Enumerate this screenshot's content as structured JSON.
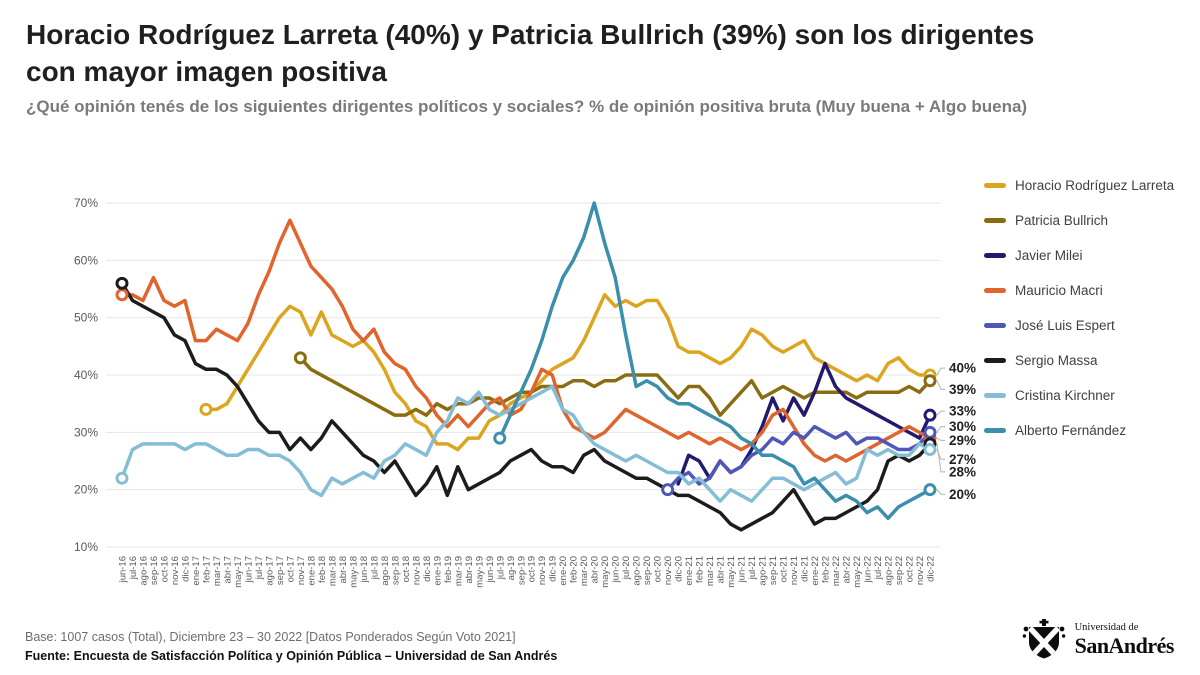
{
  "header": {
    "title": "Horacio Rodríguez Larreta (40%) y Patricia Bullrich (39%) son los dirigentes con mayor imagen positiva",
    "subtitle": "¿Qué opinión tenés de los siguientes dirigentes políticos y sociales? % de opinión positiva bruta (Muy buena + Algo buena)"
  },
  "footer": {
    "base": "Base: 1007 casos (Total), Diciembre 23 – 30 2022 [Datos Ponderados Según Voto 2021]",
    "fuente": "Fuente: Encuesta de Satisfacción Política y Opinión Pública – Universidad de San Andrés",
    "logo": {
      "top": "Universidad de",
      "bottom": "SanAndrés"
    }
  },
  "chart_data": {
    "type": "line",
    "title": "",
    "xlabel": "",
    "ylabel": "% de opinión positiva",
    "ylim": [
      10,
      70
    ],
    "yticks": [
      10,
      20,
      30,
      40,
      50,
      60,
      70
    ],
    "ytick_suffix": "%",
    "grid": true,
    "legend_position": "right",
    "x": [
      "jun-16",
      "jul-16",
      "ago-16",
      "sep-16",
      "oct-16",
      "nov-16",
      "dic-16",
      "ene-17",
      "feb-17",
      "mar-17",
      "abr-17",
      "may-17",
      "jun-17",
      "jul-17",
      "ago-17",
      "sep-17",
      "oct-17",
      "nov-17",
      "ene-18",
      "feb-18",
      "mar-18",
      "abr-18",
      "may-18",
      "jun-18",
      "jul-18",
      "ago-18",
      "sep-18",
      "oct-18",
      "nov-18",
      "dic-18",
      "ene-19",
      "feb-19",
      "mar-19",
      "abr-19",
      "may-19",
      "jun-19",
      "jul-19",
      "ag-19",
      "sep-19",
      "oct-19",
      "nov-19",
      "dic-19",
      "ene-20",
      "feb-20",
      "mar-20",
      "abr-20",
      "may-20",
      "jun-20",
      "jul-20",
      "ago-20",
      "sep-20",
      "oct-20",
      "nov-20",
      "dic-20",
      "ene-21",
      "feb-21",
      "mar-21",
      "abr-21",
      "may-21",
      "jun-21",
      "jul-21",
      "ago-21",
      "sep-21",
      "oct-21",
      "nov-21",
      "dic-21",
      "ene-22",
      "feb-22",
      "mar-22",
      "abr-22",
      "may-22",
      "jun-22",
      "jul-22",
      "ago-22",
      "sep-22",
      "oct-22",
      "nov-22",
      "dic-22"
    ],
    "series": [
      {
        "name": "Horacio Rodríguez Larreta",
        "color": "#DCA51F",
        "marker_start": true,
        "end_label": "40%",
        "end_label_pos": 41.2,
        "values": [
          null,
          null,
          null,
          null,
          null,
          null,
          null,
          null,
          34,
          34,
          35,
          38,
          41,
          44,
          47,
          50,
          52,
          51,
          47,
          51,
          47,
          46,
          45,
          46,
          44,
          41,
          37,
          35,
          32,
          31,
          28,
          28,
          27,
          29,
          29,
          32,
          33,
          35,
          36,
          37,
          39,
          41,
          42,
          43,
          46,
          50,
          54,
          52,
          53,
          52,
          53,
          53,
          50,
          45,
          44,
          44,
          43,
          42,
          43,
          45,
          48,
          47,
          45,
          44,
          45,
          46,
          43,
          42,
          41,
          40,
          39,
          40,
          39,
          42,
          43,
          41,
          40,
          40
        ]
      },
      {
        "name": "Patricia Bullrich",
        "color": "#8A6D10",
        "marker_start": true,
        "end_label": "39%",
        "end_label_pos": 37.5,
        "values": [
          null,
          null,
          null,
          null,
          null,
          null,
          null,
          null,
          null,
          null,
          null,
          null,
          null,
          null,
          null,
          null,
          null,
          43,
          41,
          40,
          39,
          38,
          37,
          36,
          35,
          34,
          33,
          33,
          34,
          33,
          35,
          34,
          35,
          35,
          36,
          36,
          35,
          36,
          37,
          37,
          38,
          38,
          38,
          39,
          39,
          38,
          39,
          39,
          40,
          40,
          40,
          40,
          38,
          36,
          38,
          38,
          36,
          33,
          35,
          37,
          39,
          36,
          37,
          38,
          37,
          36,
          37,
          37,
          37,
          37,
          36,
          37,
          37,
          37,
          37,
          38,
          37,
          39
        ]
      },
      {
        "name": "Javier Milei",
        "color": "#23196E",
        "marker_start": false,
        "end_label": "33%",
        "end_label_pos": 33.7,
        "values": [
          null,
          null,
          null,
          null,
          null,
          null,
          null,
          null,
          null,
          null,
          null,
          null,
          null,
          null,
          null,
          null,
          null,
          null,
          null,
          null,
          null,
          null,
          null,
          null,
          null,
          null,
          null,
          null,
          null,
          null,
          null,
          null,
          null,
          null,
          null,
          null,
          null,
          null,
          null,
          null,
          null,
          null,
          null,
          null,
          null,
          null,
          null,
          null,
          null,
          null,
          null,
          null,
          null,
          21,
          26,
          25,
          22,
          25,
          23,
          24,
          27,
          31,
          36,
          32,
          36,
          33,
          37,
          42,
          38,
          36,
          35,
          34,
          33,
          32,
          31,
          30,
          29,
          33
        ]
      },
      {
        "name": "Mauricio Macri",
        "color": "#E0642B",
        "marker_start": true,
        "end_label": "29%",
        "end_label_pos": 28.6,
        "values": [
          54,
          54,
          53,
          57,
          53,
          52,
          53,
          46,
          46,
          48,
          47,
          46,
          49,
          54,
          58,
          63,
          67,
          63,
          59,
          57,
          55,
          52,
          48,
          46,
          48,
          44,
          42,
          41,
          38,
          36,
          33,
          31,
          33,
          31,
          33,
          35,
          36,
          33,
          34,
          37,
          41,
          40,
          34,
          31,
          30,
          29,
          30,
          32,
          34,
          33,
          32,
          31,
          30,
          29,
          30,
          29,
          28,
          29,
          28,
          27,
          28,
          30,
          33,
          34,
          31,
          28,
          26,
          25,
          26,
          25,
          26,
          27,
          28,
          29,
          30,
          31,
          30,
          29
        ]
      },
      {
        "name": "José Luis Espert",
        "color": "#4F57B8",
        "marker_start": true,
        "end_label": "30%",
        "end_label_pos": 31.0,
        "values": [
          null,
          null,
          null,
          null,
          null,
          null,
          null,
          null,
          null,
          null,
          null,
          null,
          null,
          null,
          null,
          null,
          null,
          null,
          null,
          null,
          null,
          null,
          null,
          null,
          null,
          null,
          null,
          null,
          null,
          null,
          null,
          null,
          null,
          null,
          null,
          null,
          null,
          null,
          null,
          null,
          null,
          null,
          null,
          null,
          null,
          null,
          null,
          null,
          null,
          null,
          null,
          null,
          20,
          22,
          23,
          21,
          22,
          25,
          23,
          24,
          26,
          27,
          29,
          28,
          30,
          29,
          31,
          30,
          29,
          30,
          28,
          29,
          29,
          28,
          27,
          27,
          28,
          30
        ]
      },
      {
        "name": "Sergio Massa",
        "color": "#1C1C1C",
        "marker_start": true,
        "end_label": "28%",
        "end_label_pos": 23.1,
        "values": [
          56,
          53,
          52,
          51,
          50,
          47,
          46,
          42,
          41,
          41,
          40,
          38,
          35,
          32,
          30,
          30,
          27,
          29,
          27,
          29,
          32,
          30,
          28,
          26,
          25,
          23,
          25,
          22,
          19,
          21,
          24,
          19,
          24,
          20,
          21,
          22,
          23,
          25,
          26,
          27,
          25,
          24,
          24,
          23,
          26,
          27,
          25,
          24,
          23,
          22,
          22,
          21,
          20,
          19,
          19,
          18,
          17,
          16,
          14,
          13,
          14,
          15,
          16,
          18,
          20,
          17,
          14,
          15,
          15,
          16,
          17,
          18,
          20,
          25,
          26,
          25,
          26,
          28
        ]
      },
      {
        "name": "Cristina Kirchner",
        "color": "#85BDD6",
        "marker_start": true,
        "end_label": "27%",
        "end_label_pos": 25.3,
        "values": [
          22,
          27,
          28,
          28,
          28,
          28,
          27,
          28,
          28,
          27,
          26,
          26,
          27,
          27,
          26,
          26,
          25,
          23,
          20,
          19,
          22,
          21,
          22,
          23,
          22,
          25,
          26,
          28,
          27,
          26,
          30,
          32,
          36,
          35,
          37,
          34,
          33,
          34,
          35,
          36,
          37,
          38,
          34,
          33,
          30,
          28,
          27,
          26,
          25,
          26,
          25,
          24,
          23,
          23,
          21,
          22,
          20,
          18,
          20,
          19,
          18,
          20,
          22,
          22,
          21,
          20,
          21,
          22,
          23,
          21,
          22,
          27,
          26,
          27,
          26,
          26,
          28,
          27
        ]
      },
      {
        "name": "Alberto Fernández",
        "color": "#3B8FAD",
        "marker_start": true,
        "end_label": "20%",
        "end_label_pos": 19.2,
        "values": [
          null,
          null,
          null,
          null,
          null,
          null,
          null,
          null,
          null,
          null,
          null,
          null,
          null,
          null,
          null,
          null,
          null,
          null,
          null,
          null,
          null,
          null,
          null,
          null,
          null,
          null,
          null,
          null,
          null,
          null,
          null,
          null,
          null,
          null,
          null,
          null,
          29,
          33,
          37,
          41,
          46,
          52,
          57,
          60,
          64,
          70,
          63,
          57,
          47,
          38,
          39,
          38,
          36,
          35,
          35,
          34,
          33,
          32,
          31,
          29,
          28,
          26,
          26,
          25,
          24,
          21,
          22,
          20,
          18,
          19,
          18,
          16,
          17,
          15,
          17,
          18,
          19,
          20
        ]
      }
    ]
  }
}
